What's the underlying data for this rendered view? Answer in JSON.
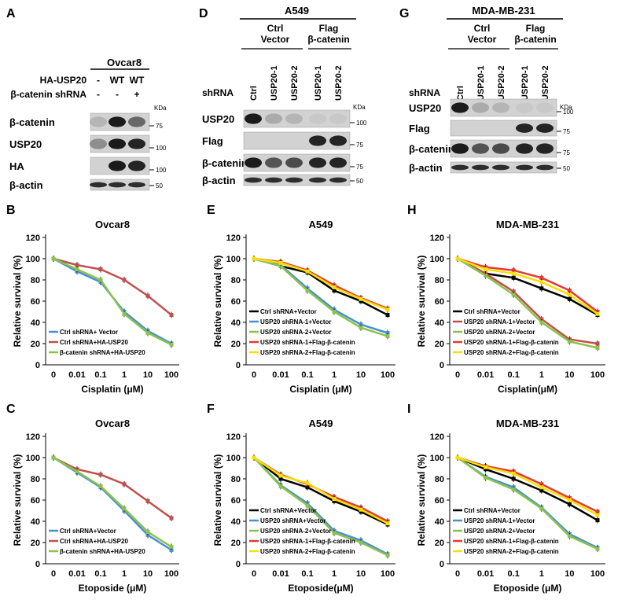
{
  "panel_letters": [
    "A",
    "D",
    "G",
    "B",
    "E",
    "H",
    "C",
    "F",
    "I"
  ],
  "blots": {
    "A": {
      "cell_line": "Ovcar8",
      "row_headers": [
        {
          "name": "HA-USP20",
          "values": [
            "-",
            "WT",
            "WT"
          ]
        },
        {
          "name": "β-catenin shRNA",
          "values": [
            "-",
            "-",
            "+"
          ]
        }
      ],
      "bands": [
        "β-catenin",
        "USP20",
        "HA",
        "β-actin"
      ],
      "kda_label": "KDa",
      "markers": [
        "75",
        "100",
        "100",
        "50"
      ]
    },
    "D": {
      "cell_line": "A549",
      "groups": [
        "Ctrl Vector",
        "Flag β-catenin"
      ],
      "shrna_label": "shRNA",
      "lanes": [
        "Ctrl",
        "USP20-1",
        "USP20-2",
        "USP20-1",
        "USP20-2"
      ],
      "bands": [
        "USP20",
        "Flag",
        "β-catenin",
        "β-actin"
      ],
      "kda_label": "KDa",
      "markers": [
        "100",
        "75",
        "75",
        "50"
      ]
    },
    "G": {
      "cell_line": "MDA-MB-231",
      "groups": [
        "Ctrl Vector",
        "Flag β-catenin"
      ],
      "shrna_label": "shRNA",
      "lanes": [
        "Ctrl",
        "USP20-1",
        "USP20-2",
        "USP20-1",
        "USP20-2"
      ],
      "bands": [
        "USP20",
        "Flag",
        "β-catenin",
        "β-actin"
      ],
      "kda_label": "KDa",
      "markers": [
        "100",
        "75",
        "75",
        "50"
      ]
    }
  },
  "chart_data": [
    {
      "panel": "B",
      "type": "line",
      "title": "Ovcar8",
      "xlabel": "Cisplatin (μM)",
      "ylabel": "Relative survival (%)",
      "categories": [
        "0",
        "0.01",
        "0.1",
        "1",
        "10",
        "100"
      ],
      "ylim": [
        0,
        120
      ],
      "yticks": [
        0,
        20,
        40,
        60,
        80,
        100,
        120
      ],
      "series": [
        {
          "name": "Ctrl shRNA+ Vector",
          "color": "#4a8fd4",
          "values": [
            100,
            88,
            78,
            50,
            32,
            20
          ]
        },
        {
          "name": "Ctrl shRNA+HA-USP20",
          "color": "#c0504d",
          "values": [
            100,
            94,
            90,
            80,
            65,
            47
          ]
        },
        {
          "name": "β-catenin shRNA+HA-USP20",
          "color": "#8bc34a",
          "values": [
            100,
            90,
            80,
            48,
            30,
            19
          ]
        }
      ]
    },
    {
      "panel": "E",
      "type": "line",
      "title": "A549",
      "xlabel": "Cisplatin (μM)",
      "ylabel": "Relative survival (%)",
      "categories": [
        "0",
        "0.01",
        "0.1",
        "1",
        "10",
        "100"
      ],
      "ylim": [
        0,
        120
      ],
      "yticks": [
        0,
        20,
        40,
        60,
        80,
        100,
        120
      ],
      "series": [
        {
          "name": "Ctrl shRNA+Vector",
          "color": "#000000",
          "values": [
            100,
            93,
            87,
            70,
            60,
            47
          ]
        },
        {
          "name": "USP20 shRNA-1+Vector",
          "color": "#4a8fd4",
          "values": [
            100,
            94,
            72,
            52,
            38,
            30
          ]
        },
        {
          "name": "USP20 shRNA-2+Vector",
          "color": "#8bc34a",
          "values": [
            100,
            93,
            70,
            50,
            35,
            27
          ]
        },
        {
          "name": "USP20 shRNA-1+Flag-β-catenin",
          "color": "#e53935",
          "values": [
            100,
            97,
            89,
            75,
            63,
            53
          ]
        },
        {
          "name": "USP20 shRNA-2+Flag-β-catenin",
          "color": "#f5e000",
          "values": [
            100,
            96,
            88,
            73,
            62,
            52
          ]
        }
      ]
    },
    {
      "panel": "H",
      "type": "line",
      "title": "MDA-MB-231",
      "xlabel": "Cisplatin(μM)",
      "ylabel": "Relative survival (%)",
      "categories": [
        "0",
        "0.01",
        "0.1",
        "1",
        "10",
        "100"
      ],
      "ylim": [
        0,
        120
      ],
      "yticks": [
        0,
        20,
        40,
        60,
        80,
        100,
        120
      ],
      "series": [
        {
          "name": "Ctrl shRNA+Vector",
          "color": "#000000",
          "values": [
            100,
            86,
            82,
            72,
            62,
            47
          ]
        },
        {
          "name": "USP20 shRNA-1+Vector",
          "color": "#c0504d",
          "values": [
            100,
            86,
            69,
            43,
            24,
            20
          ]
        },
        {
          "name": "USP20 shRNA-2+Vector",
          "color": "#8bc34a",
          "values": [
            100,
            84,
            66,
            40,
            22,
            16
          ]
        },
        {
          "name": "USP20 shRNA-1+Flag-β-catenin",
          "color": "#e53935",
          "values": [
            100,
            92,
            89,
            82,
            70,
            50
          ]
        },
        {
          "name": "USP20 shRNA-2+Flag-β-catenin",
          "color": "#f5e000",
          "values": [
            100,
            90,
            86,
            78,
            66,
            48
          ]
        }
      ]
    },
    {
      "panel": "C",
      "type": "line",
      "title": "Ovcar8",
      "xlabel": "Etoposide (μM)",
      "ylabel": "Relative survival (%)",
      "categories": [
        "0",
        "0.01",
        "0.1",
        "1",
        "10",
        "100"
      ],
      "ylim": [
        0,
        120
      ],
      "yticks": [
        0,
        20,
        40,
        60,
        80,
        100,
        120
      ],
      "series": [
        {
          "name": "Ctrl shRNA+Vector",
          "color": "#4a8fd4",
          "values": [
            100,
            86,
            72,
            50,
            27,
            13
          ]
        },
        {
          "name": "Ctrl shRNA+HA-USP20",
          "color": "#c0504d",
          "values": [
            100,
            89,
            84,
            75,
            59,
            43
          ]
        },
        {
          "name": "β-catenin shRNA+HA-USP20",
          "color": "#8bc34a",
          "values": [
            100,
            87,
            73,
            52,
            30,
            16
          ]
        }
      ]
    },
    {
      "panel": "F",
      "type": "line",
      "title": "A549",
      "xlabel": "Etoposide(μM)",
      "ylabel": "Relative survival (%)",
      "categories": [
        "0",
        "0.01",
        "0.1",
        "1",
        "10",
        "100"
      ],
      "ylim": [
        0,
        120
      ],
      "yticks": [
        0,
        20,
        40,
        60,
        80,
        100,
        120
      ],
      "series": [
        {
          "name": "Ctrl shRNA+Vector",
          "color": "#000000",
          "values": [
            100,
            80,
            72,
            59,
            49,
            37
          ]
        },
        {
          "name": "USP20 shRNA+Vector",
          "color": "#4a8fd4",
          "values": [
            100,
            74,
            57,
            31,
            22,
            9
          ]
        },
        {
          "name": "USP20 shRNA-2+Vector",
          "color": "#8bc34a",
          "values": [
            100,
            73,
            55,
            29,
            20,
            8
          ]
        },
        {
          "name": "USP20 shRNA-1+Flag-β-catenin",
          "color": "#e53935",
          "values": [
            100,
            84,
            75,
            63,
            53,
            40
          ]
        },
        {
          "name": "USP20 shRNA-2+Flag-β-catenin",
          "color": "#f5e000",
          "values": [
            100,
            83,
            76,
            61,
            51,
            38
          ]
        }
      ]
    },
    {
      "panel": "I",
      "type": "line",
      "title": "MDA-MB-231",
      "xlabel": "Etoposide (μM)",
      "ylabel": "Relative survival (%)",
      "categories": [
        "0",
        "0.01",
        "0.1",
        "1",
        "10",
        "100"
      ],
      "ylim": [
        0,
        120
      ],
      "yticks": [
        0,
        20,
        40,
        60,
        80,
        100,
        120
      ],
      "series": [
        {
          "name": "Ctrl shRNA+Vector",
          "color": "#000000",
          "values": [
            100,
            89,
            80,
            69,
            56,
            41
          ]
        },
        {
          "name": "USP20 shRNA-1+Vector",
          "color": "#4a8fd4",
          "values": [
            100,
            82,
            72,
            53,
            28,
            15
          ]
        },
        {
          "name": "USP20 shRNA-2+Vector",
          "color": "#8bc34a",
          "values": [
            100,
            81,
            70,
            52,
            26,
            14
          ]
        },
        {
          "name": "USP20 shRNA-1+Flag-β-catenin",
          "color": "#e53935",
          "values": [
            100,
            92,
            87,
            75,
            62,
            49
          ]
        },
        {
          "name": "USP20 shRNA-2+Flag-β-catenin",
          "color": "#f5e000",
          "values": [
            100,
            91,
            85,
            72,
            60,
            46
          ]
        }
      ]
    }
  ]
}
